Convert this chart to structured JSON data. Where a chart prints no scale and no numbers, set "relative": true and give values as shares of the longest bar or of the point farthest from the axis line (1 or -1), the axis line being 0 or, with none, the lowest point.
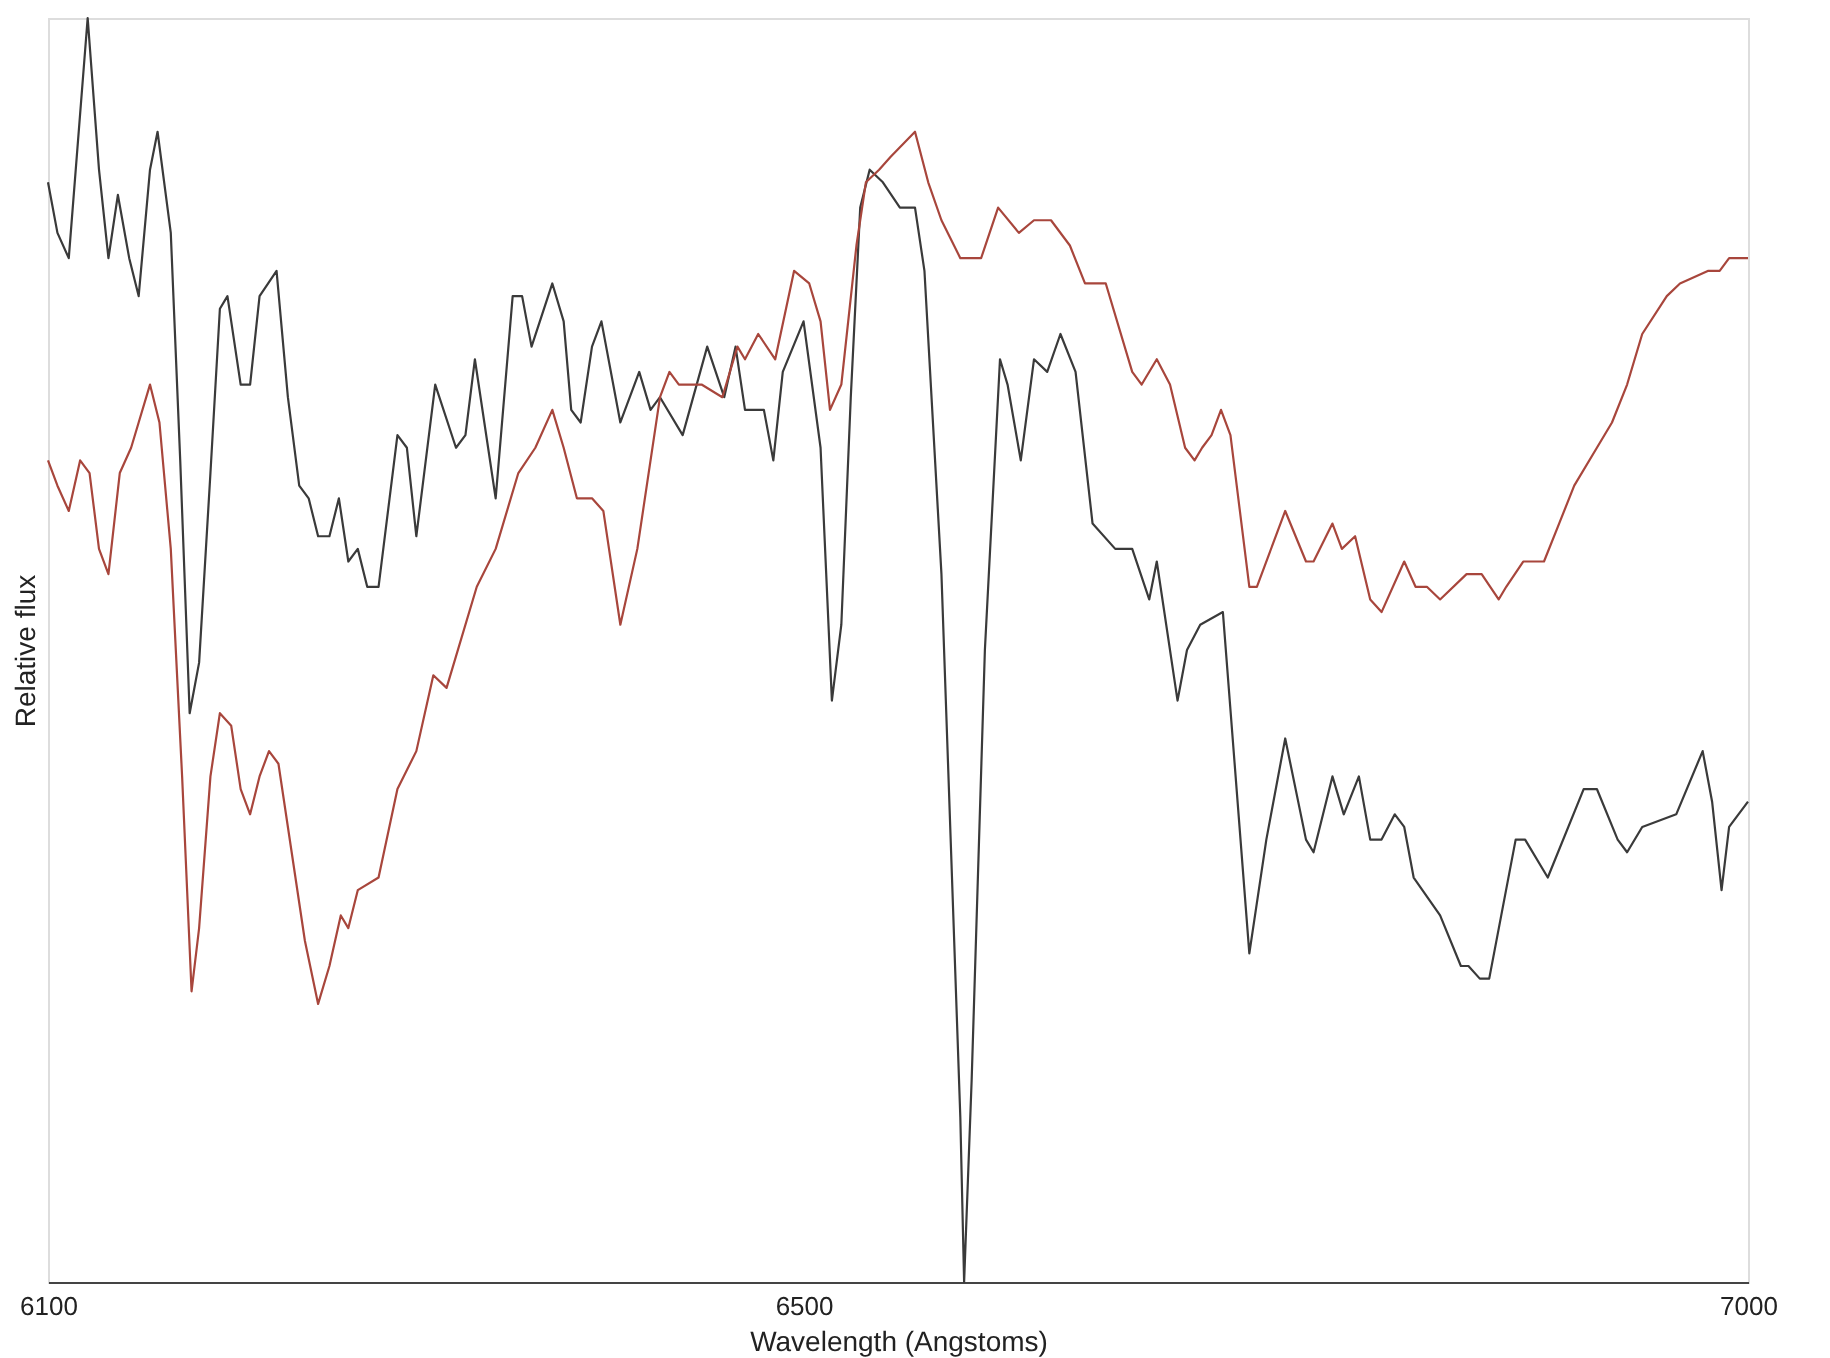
{
  "chart_data": {
    "type": "line",
    "xlabel": "Wavelength (Angstoms)",
    "ylabel": "Relative flux",
    "relative": true,
    "xlim": [
      6100,
      7000
    ],
    "xticks": [
      6100,
      6500,
      7000
    ],
    "grid": false,
    "legend": false,
    "marker": "none",
    "line_style": "solid",
    "series": [
      {
        "color": "#3a3a3a",
        "x": [
          6100,
          6105,
          6111,
          6121,
          6127,
          6132,
          6137,
          6143,
          6148,
          6154,
          6158,
          6165,
          6170,
          6175,
          6180,
          6186,
          6191,
          6195,
          6202,
          6207,
          6212,
          6221,
          6227,
          6233,
          6238,
          6243,
          6249,
          6254,
          6259,
          6264,
          6269,
          6275,
          6285,
          6290,
          6295,
          6305,
          6316,
          6321,
          6326,
          6337,
          6346,
          6351,
          6356,
          6367,
          6373,
          6377,
          6382,
          6388,
          6393,
          6403,
          6413,
          6419,
          6424,
          6436,
          6449,
          6458,
          6464,
          6469,
          6479,
          6484,
          6489,
          6500,
          6509,
          6515,
          6520,
          6525,
          6530,
          6535,
          6542,
          6551,
          6559,
          6564,
          6573,
          6583,
          6585,
          6589,
          6596,
          6604,
          6608,
          6615,
          6622,
          6629,
          6636,
          6644,
          6653,
          6665,
          6674,
          6683,
          6687,
          6698,
          6703,
          6710,
          6722,
          6736,
          6745,
          6755,
          6766,
          6770,
          6780,
          6786,
          6794,
          6800,
          6806,
          6813,
          6818,
          6823,
          6837,
          6848,
          6852,
          6858,
          6863,
          6877,
          6882,
          6894,
          6913,
          6920,
          6931,
          6936,
          6944,
          6962,
          6976,
          6981,
          6986,
          6990,
          7000
        ],
        "values": [
          0.87,
          0.83,
          0.81,
          1.0,
          0.88,
          0.81,
          0.86,
          0.81,
          0.78,
          0.88,
          0.91,
          0.83,
          0.65,
          0.45,
          0.49,
          0.64,
          0.77,
          0.78,
          0.71,
          0.71,
          0.78,
          0.8,
          0.7,
          0.63,
          0.62,
          0.59,
          0.59,
          0.62,
          0.57,
          0.58,
          0.55,
          0.55,
          0.67,
          0.66,
          0.59,
          0.71,
          0.66,
          0.67,
          0.73,
          0.62,
          0.78,
          0.78,
          0.74,
          0.79,
          0.76,
          0.69,
          0.68,
          0.74,
          0.76,
          0.68,
          0.72,
          0.69,
          0.7,
          0.67,
          0.74,
          0.7,
          0.74,
          0.69,
          0.69,
          0.65,
          0.72,
          0.76,
          0.66,
          0.46,
          0.52,
          0.7,
          0.85,
          0.88,
          0.87,
          0.85,
          0.85,
          0.8,
          0.56,
          0.13,
          0.0,
          0.16,
          0.5,
          0.73,
          0.71,
          0.65,
          0.73,
          0.72,
          0.75,
          0.72,
          0.6,
          0.58,
          0.58,
          0.54,
          0.57,
          0.46,
          0.5,
          0.52,
          0.53,
          0.26,
          0.35,
          0.43,
          0.35,
          0.34,
          0.4,
          0.37,
          0.4,
          0.35,
          0.35,
          0.37,
          0.36,
          0.32,
          0.29,
          0.25,
          0.25,
          0.24,
          0.24,
          0.35,
          0.35,
          0.32,
          0.39,
          0.39,
          0.35,
          0.34,
          0.36,
          0.37,
          0.42,
          0.38,
          0.31,
          0.36,
          0.38
        ]
      },
      {
        "color": "#a8463c",
        "x": [
          6100,
          6105,
          6111,
          6117,
          6122,
          6127,
          6132,
          6138,
          6144,
          6148,
          6154,
          6159,
          6165,
          6171,
          6176,
          6180,
          6186,
          6191,
          6197,
          6202,
          6207,
          6212,
          6217,
          6222,
          6229,
          6236,
          6243,
          6249,
          6255,
          6259,
          6264,
          6275,
          6285,
          6295,
          6304,
          6311,
          6327,
          6337,
          6349,
          6358,
          6367,
          6373,
          6380,
          6388,
          6394,
          6403,
          6412,
          6424,
          6429,
          6434,
          6446,
          6457,
          6465,
          6469,
          6476,
          6485,
          6495,
          6503,
          6509,
          6514,
          6520,
          6528,
          6533,
          6540,
          6546,
          6559,
          6566,
          6573,
          6583,
          6594,
          6603,
          6614,
          6622,
          6631,
          6641,
          6649,
          6660,
          6674,
          6679,
          6687,
          6694,
          6702,
          6707,
          6711,
          6716,
          6721,
          6726,
          6736,
          6740,
          6755,
          6766,
          6770,
          6780,
          6785,
          6792,
          6800,
          6806,
          6818,
          6824,
          6830,
          6837,
          6851,
          6859,
          6868,
          6872,
          6881,
          6892,
          6900,
          6908,
          6920,
          6928,
          6936,
          6944,
          6957,
          6964,
          6979,
          6985,
          6990,
          7000
        ],
        "values": [
          0.65,
          0.63,
          0.61,
          0.65,
          0.64,
          0.58,
          0.56,
          0.64,
          0.66,
          0.68,
          0.71,
          0.68,
          0.58,
          0.4,
          0.23,
          0.28,
          0.4,
          0.45,
          0.44,
          0.39,
          0.37,
          0.4,
          0.42,
          0.41,
          0.34,
          0.27,
          0.22,
          0.25,
          0.29,
          0.28,
          0.31,
          0.32,
          0.39,
          0.42,
          0.48,
          0.47,
          0.55,
          0.58,
          0.64,
          0.66,
          0.69,
          0.66,
          0.62,
          0.62,
          0.61,
          0.52,
          0.58,
          0.7,
          0.72,
          0.71,
          0.71,
          0.7,
          0.74,
          0.73,
          0.75,
          0.73,
          0.8,
          0.79,
          0.76,
          0.69,
          0.71,
          0.82,
          0.87,
          0.88,
          0.89,
          0.91,
          0.87,
          0.84,
          0.81,
          0.81,
          0.85,
          0.83,
          0.84,
          0.84,
          0.82,
          0.79,
          0.79,
          0.72,
          0.71,
          0.73,
          0.71,
          0.66,
          0.65,
          0.66,
          0.67,
          0.69,
          0.67,
          0.55,
          0.55,
          0.61,
          0.57,
          0.57,
          0.6,
          0.58,
          0.59,
          0.54,
          0.53,
          0.57,
          0.55,
          0.55,
          0.54,
          0.56,
          0.56,
          0.54,
          0.55,
          0.57,
          0.57,
          0.6,
          0.63,
          0.66,
          0.68,
          0.71,
          0.75,
          0.78,
          0.79,
          0.8,
          0.8,
          0.81,
          0.81
        ]
      }
    ]
  }
}
